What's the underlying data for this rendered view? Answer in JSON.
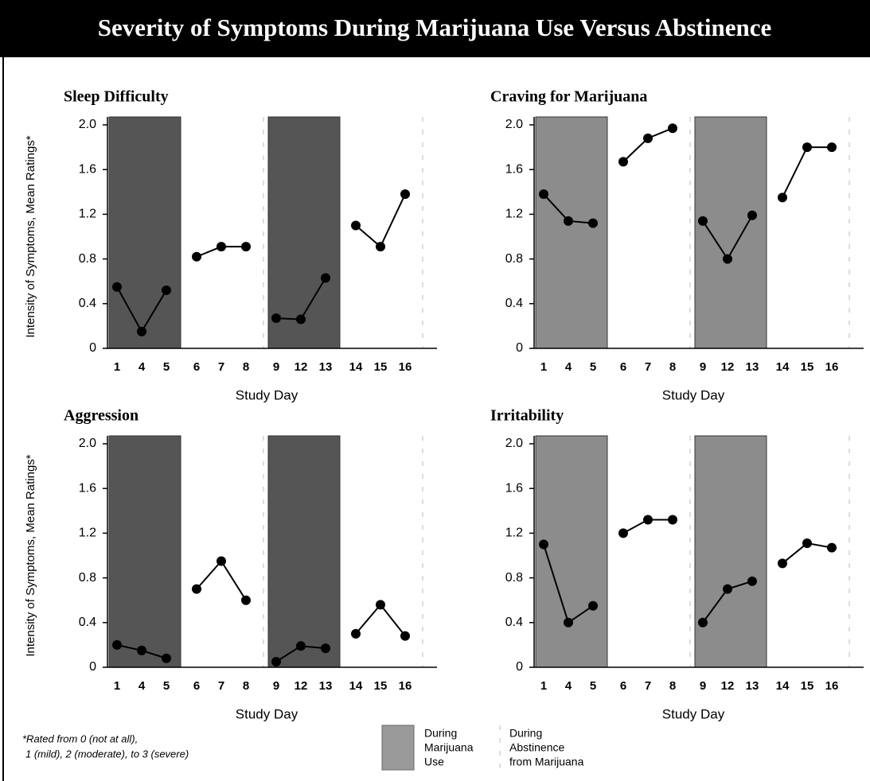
{
  "title": "Severity of Symptoms During Marijuana Use Versus Abstinence",
  "footnote": [
    "*Rated from 0 (not at all),",
    "1 (mild), 2 (moderate), to 3 (severe)"
  ],
  "legend": [
    {
      "lines": [
        "During",
        "Marijuana",
        "Use"
      ],
      "shaded": true,
      "color": "#9a9a9a"
    },
    {
      "lines": [
        "During",
        "Abstinence",
        "from Marijuana"
      ],
      "shaded": false
    }
  ],
  "chart_data": [
    {
      "type": "line",
      "title": "Sleep  Difficulty",
      "ylabel": "Intensity of Symptoms, Mean Ratings*",
      "xlabel": "Study Day",
      "ylim": [
        0,
        2
      ],
      "yticks": [
        0,
        0.4,
        0.8,
        1.2,
        1.6,
        {
          "value": 2,
          "label": "2.0"
        }
      ],
      "color": "#000000",
      "shade_color": "#555555",
      "groups": [
        {
          "shaded": true,
          "categories": [
            "1",
            "4",
            "5"
          ],
          "values": [
            0.55,
            0.15,
            0.52
          ]
        },
        {
          "shaded": false,
          "categories": [
            "6",
            "7",
            "8"
          ],
          "values": [
            0.82,
            0.91,
            0.91
          ]
        },
        {
          "shaded": true,
          "categories": [
            "9",
            "12",
            "13"
          ],
          "values": [
            0.27,
            0.26,
            0.63
          ]
        },
        {
          "shaded": false,
          "categories": [
            "14",
            "15",
            "16"
          ],
          "values": [
            1.1,
            0.91,
            1.38
          ]
        }
      ]
    },
    {
      "type": "line",
      "title": "Craving for Marijuana",
      "xlabel": "Study Day",
      "ylim": [
        0,
        2
      ],
      "yticks": [
        0,
        0.4,
        0.8,
        1.2,
        1.6,
        {
          "value": 2,
          "label": "2.0"
        }
      ],
      "color": "#000000",
      "shade_color": "#8c8c8c",
      "groups": [
        {
          "shaded": true,
          "categories": [
            "1",
            "4",
            "5"
          ],
          "values": [
            1.38,
            1.14,
            1.12
          ]
        },
        {
          "shaded": false,
          "categories": [
            "6",
            "7",
            "8"
          ],
          "values": [
            1.67,
            1.88,
            1.97
          ]
        },
        {
          "shaded": true,
          "categories": [
            "9",
            "12",
            "13"
          ],
          "values": [
            1.14,
            0.8,
            1.19
          ]
        },
        {
          "shaded": false,
          "categories": [
            "14",
            "15",
            "16"
          ],
          "values": [
            1.35,
            1.8,
            1.8
          ]
        }
      ]
    },
    {
      "type": "line",
      "title": "Aggression",
      "ylabel": "Intensity of Symptoms, Mean Ratings*",
      "xlabel": "Study Day",
      "ylim": [
        0,
        2
      ],
      "yticks": [
        0,
        0.4,
        0.8,
        1.2,
        1.6,
        {
          "value": 2,
          "label": "2.0"
        }
      ],
      "color": "#000000",
      "shade_color": "#555555",
      "groups": [
        {
          "shaded": true,
          "categories": [
            "1",
            "4",
            "5"
          ],
          "values": [
            0.2,
            0.15,
            0.08
          ]
        },
        {
          "shaded": false,
          "categories": [
            "6",
            "7",
            "8"
          ],
          "values": [
            0.7,
            0.95,
            0.6
          ]
        },
        {
          "shaded": true,
          "categories": [
            "9",
            "12",
            "13"
          ],
          "values": [
            0.05,
            0.19,
            0.17
          ]
        },
        {
          "shaded": false,
          "categories": [
            "14",
            "15",
            "16"
          ],
          "values": [
            0.3,
            0.56,
            0.28
          ]
        }
      ]
    },
    {
      "type": "line",
      "title": "Irritability",
      "xlabel": "Study Day",
      "ylim": [
        0,
        2
      ],
      "yticks": [
        0,
        0.4,
        0.8,
        1.2,
        1.6,
        {
          "value": 2,
          "label": "2.0"
        }
      ],
      "color": "#000000",
      "shade_color": "#8c8c8c",
      "groups": [
        {
          "shaded": true,
          "categories": [
            "1",
            "4",
            "5"
          ],
          "values": [
            1.1,
            0.4,
            0.55
          ]
        },
        {
          "shaded": false,
          "categories": [
            "6",
            "7",
            "8"
          ],
          "values": [
            1.2,
            1.32,
            1.32
          ]
        },
        {
          "shaded": true,
          "categories": [
            "9",
            "12",
            "13"
          ],
          "values": [
            0.4,
            0.7,
            0.77
          ]
        },
        {
          "shaded": false,
          "categories": [
            "14",
            "15",
            "16"
          ],
          "values": [
            0.93,
            1.11,
            1.07
          ]
        }
      ]
    }
  ]
}
